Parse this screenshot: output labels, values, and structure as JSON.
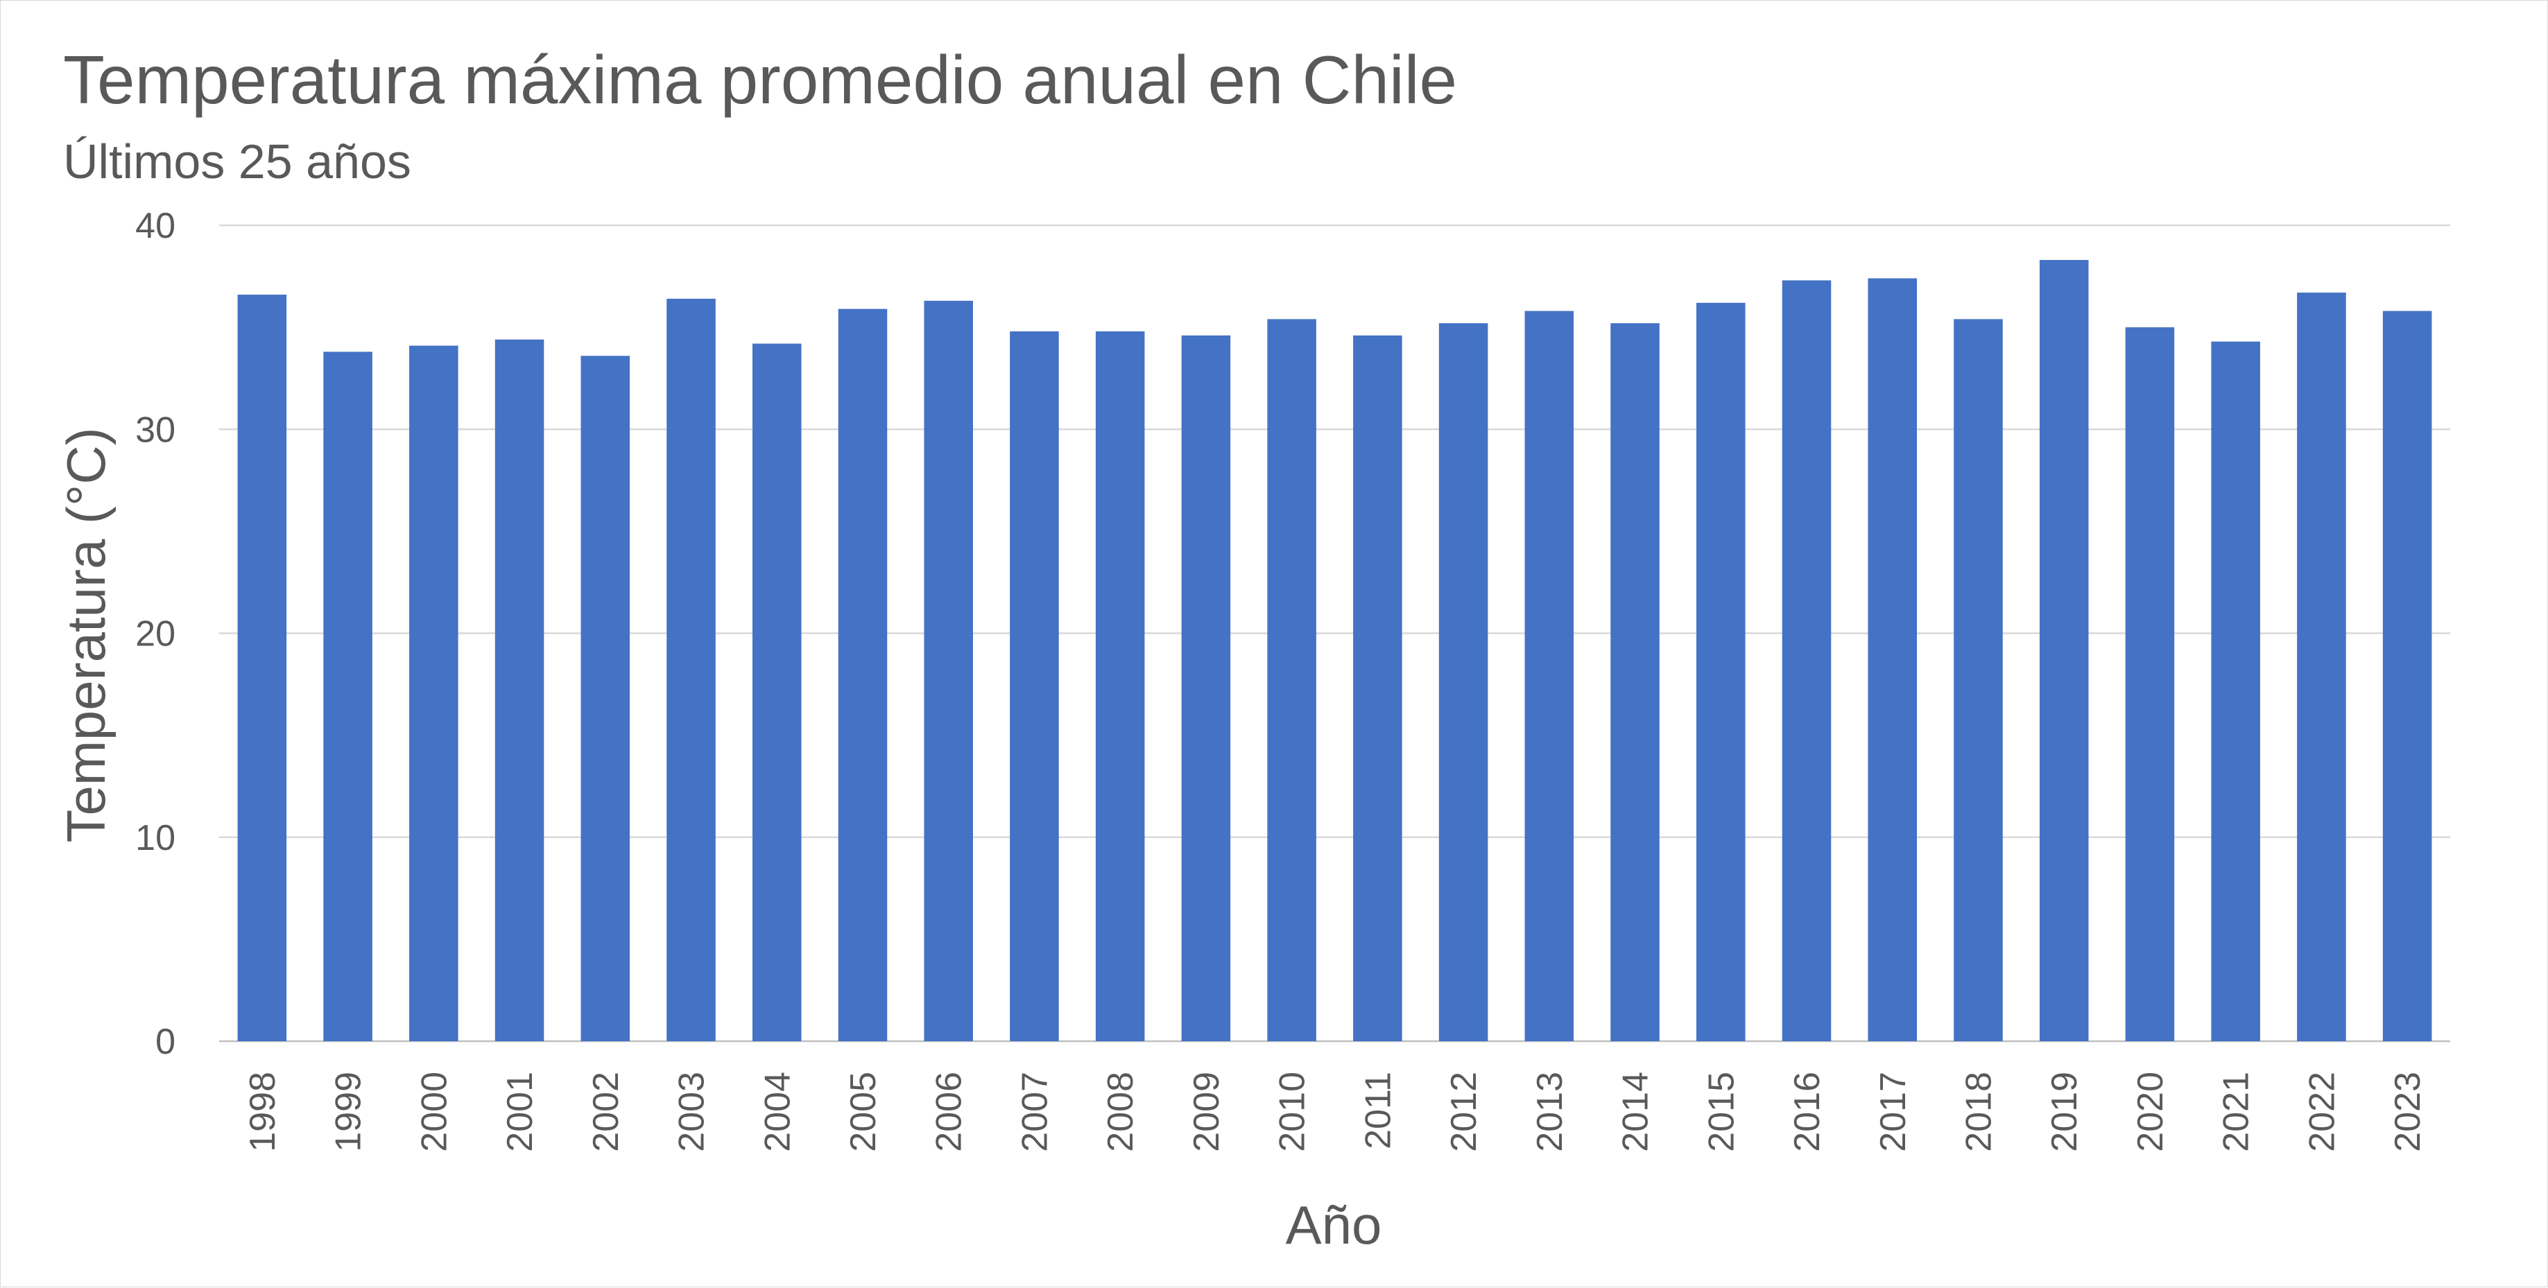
{
  "chart_data": {
    "type": "bar",
    "title": "Temperatura máxima promedio anual en Chile",
    "subtitle": "Últimos 25 años",
    "xlabel": "Año",
    "ylabel": "Temperatura (°C)",
    "ylim": [
      0,
      40
    ],
    "yticks": [
      0,
      10,
      20,
      30,
      40
    ],
    "grid": true,
    "legend": "none",
    "color": "#4472c4",
    "categories": [
      "1998",
      "1999",
      "2000",
      "2001",
      "2002",
      "2003",
      "2004",
      "2005",
      "2006",
      "2007",
      "2008",
      "2009",
      "2010",
      "2011",
      "2012",
      "2013",
      "2014",
      "2015",
      "2016",
      "2017",
      "2018",
      "2019",
      "2020",
      "2021",
      "2022",
      "2023"
    ],
    "values": [
      36.6,
      33.8,
      34.1,
      34.4,
      33.6,
      36.4,
      34.2,
      35.9,
      36.3,
      34.8,
      34.8,
      34.6,
      35.4,
      34.6,
      35.2,
      35.8,
      35.2,
      36.2,
      37.3,
      37.4,
      35.4,
      38.3,
      35.0,
      34.3,
      36.7,
      35.8
    ]
  }
}
